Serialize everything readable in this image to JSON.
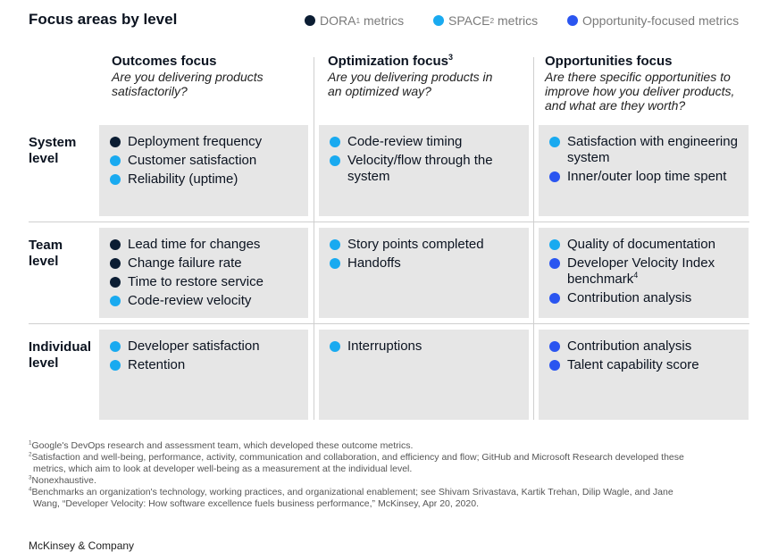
{
  "title": "Focus areas by level",
  "colors": {
    "dora": "#0b1d33",
    "space": "#19aaf0",
    "opportunity": "#2a55f0",
    "cell_bg": "#e6e6e6"
  },
  "legend": {
    "dora": {
      "label": "DORA",
      "sup": "1",
      "suffix": " metrics"
    },
    "space": {
      "label": "SPACE",
      "sup": "2",
      "suffix": " metrics"
    },
    "opportunity": {
      "label": "Opportunity-focused metrics"
    }
  },
  "columns": [
    {
      "title": "Outcomes focus",
      "sup": "",
      "question": "Are you delivering products satisfactorily?"
    },
    {
      "title": "Optimization focus",
      "sup": "3",
      "question": "Are you delivering products in an optimized way?"
    },
    {
      "title": "Opportunities focus",
      "sup": "",
      "question": "Are there specific opportunities to improve how you deliver products, and what are they worth?"
    }
  ],
  "rows": [
    {
      "label_line1": "System",
      "label_line2": "level"
    },
    {
      "label_line1": "Team",
      "label_line2": "level"
    },
    {
      "label_line1": "Individual",
      "label_line2": "level"
    }
  ],
  "cells": [
    [
      [
        {
          "text": "Deployment frequency",
          "type": "dora"
        },
        {
          "text": "Customer satisfaction",
          "type": "space"
        },
        {
          "text": "Reliability (uptime)",
          "type": "space"
        }
      ],
      [
        {
          "text": "Code-review timing",
          "type": "space"
        },
        {
          "text": "Velocity/flow through the system",
          "type": "space"
        }
      ],
      [
        {
          "text": "Satisfaction with engineering system",
          "type": "space"
        },
        {
          "text": "Inner/outer loop time spent",
          "type": "opportunity"
        }
      ]
    ],
    [
      [
        {
          "text": "Lead time for changes",
          "type": "dora"
        },
        {
          "text": "Change failure rate",
          "type": "dora"
        },
        {
          "text": "Time to restore service",
          "type": "dora"
        },
        {
          "text": "Code-review velocity",
          "type": "space"
        }
      ],
      [
        {
          "text": "Story points completed",
          "type": "space"
        },
        {
          "text": "Handoffs",
          "type": "space"
        }
      ],
      [
        {
          "text": "Quality of documentation",
          "type": "space"
        },
        {
          "text": "Developer Velocity Index benchmark",
          "sup": "4",
          "type": "opportunity"
        },
        {
          "text": "Contribution analysis",
          "type": "opportunity"
        }
      ]
    ],
    [
      [
        {
          "text": "Developer satisfaction",
          "type": "space"
        },
        {
          "text": "Retention",
          "type": "space"
        }
      ],
      [
        {
          "text": "Interruptions",
          "type": "space"
        }
      ],
      [
        {
          "text": "Contribution analysis",
          "type": "opportunity"
        },
        {
          "text": "Talent capability score",
          "type": "opportunity"
        }
      ]
    ]
  ],
  "footnotes": [
    {
      "mark": "1",
      "line1": "Google's DevOps research and assessment team, which developed these outcome metrics.",
      "line2": ""
    },
    {
      "mark": "2",
      "line1": "Satisfaction and well-being, performance, activity, communication and collaboration, and efficiency and flow; GitHub and Microsoft Research developed these",
      "line2": "metrics, which aim to look at developer well-being as a measurement at the individual level."
    },
    {
      "mark": "3",
      "line1": "Nonexhaustive.",
      "line2": ""
    },
    {
      "mark": "4",
      "line1": "Benchmarks an organization's technology, working practices, and organizational enablement; see Shivam Srivastava, Kartik Trehan, Dilip Wagle, and Jane",
      "line2": "Wang, “Developer Velocity: How software excellence fuels business performance,” McKinsey, Apr 20, 2020."
    }
  ],
  "brand": "McKinsey & Company"
}
